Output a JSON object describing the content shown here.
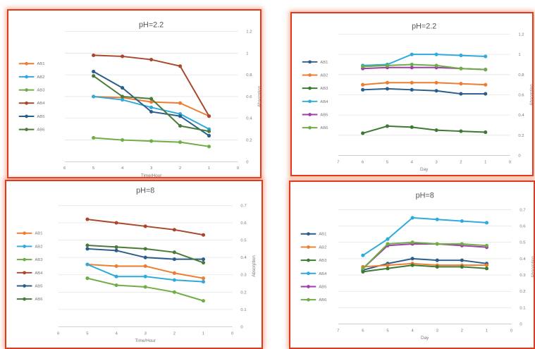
{
  "chart_data": [
    {
      "type": "line",
      "title": "pH=2.2",
      "xlabel": "Time/Hour",
      "ylabel": "Absorption",
      "x_ticks": [
        "6",
        "5",
        "4",
        "3",
        "2",
        "1",
        "0"
      ],
      "x_reversed": true,
      "x": [
        5,
        4,
        3,
        2,
        1
      ],
      "xlim": [
        0,
        6
      ],
      "ylim": [
        0,
        1.2
      ],
      "y_ticks": [
        "0",
        "0.2",
        "0.4",
        "0.6",
        "0.8",
        "1",
        "1.2"
      ],
      "legend_position": "left",
      "series": [
        {
          "name": "AB1",
          "color": "#ed7d31",
          "values": [
            0.6,
            0.59,
            0.55,
            0.54,
            0.42
          ]
        },
        {
          "name": "AB2",
          "color": "#2eaadc",
          "values": [
            0.6,
            0.57,
            0.5,
            0.44,
            0.3
          ]
        },
        {
          "name": "AB3",
          "color": "#70ad47",
          "values": [
            0.22,
            0.2,
            0.19,
            0.18,
            0.14
          ]
        },
        {
          "name": "AB4",
          "color": "#a9472c",
          "values": [
            0.98,
            0.97,
            0.94,
            0.88,
            0.42
          ]
        },
        {
          "name": "AB5",
          "color": "#2b5d8a",
          "values": [
            0.83,
            0.68,
            0.46,
            0.42,
            0.24
          ]
        },
        {
          "name": "AB6",
          "color": "#4a7b3a",
          "values": [
            0.79,
            0.6,
            0.58,
            0.33,
            0.28
          ]
        }
      ]
    },
    {
      "type": "line",
      "title": "pH=2.2",
      "xlabel": "Day",
      "ylabel": "Absorption",
      "x_ticks": [
        "7",
        "6",
        "5",
        "4",
        "3",
        "2",
        "1",
        "0"
      ],
      "x_reversed": true,
      "x": [
        6,
        5,
        4,
        3,
        2,
        1
      ],
      "xlim": [
        0,
        7
      ],
      "ylim": [
        0,
        1.2
      ],
      "y_ticks": [
        "0",
        "0.2",
        "0.4",
        "0.6",
        "0.8",
        "1",
        "1.2"
      ],
      "legend_position": "left",
      "series": [
        {
          "name": "AB1",
          "color": "#2b5d8a",
          "values": [
            0.65,
            0.66,
            0.65,
            0.64,
            0.61,
            0.61
          ]
        },
        {
          "name": "AB2",
          "color": "#ed7d31",
          "values": [
            0.7,
            0.72,
            0.72,
            0.72,
            0.71,
            0.7
          ]
        },
        {
          "name": "AB3",
          "color": "#3c7a32",
          "values": [
            0.22,
            0.29,
            0.28,
            0.25,
            0.24,
            0.23
          ]
        },
        {
          "name": "AB4",
          "color": "#2eaadc",
          "values": [
            0.89,
            0.9,
            1.0,
            1.0,
            0.99,
            0.98
          ]
        },
        {
          "name": "AB5",
          "color": "#9e3fa8",
          "values": [
            0.86,
            0.87,
            0.87,
            0.87,
            0.86,
            0.85
          ]
        },
        {
          "name": "AB6",
          "color": "#70ad47",
          "values": [
            0.88,
            0.89,
            0.9,
            0.89,
            0.86,
            0.85
          ]
        }
      ]
    },
    {
      "type": "line",
      "title": "pH=8",
      "xlabel": "Time/Hour",
      "ylabel": "Absorption",
      "x_ticks": [
        "6",
        "5",
        "4",
        "3",
        "2",
        "1",
        "0"
      ],
      "x_reversed": true,
      "x": [
        5,
        4,
        3,
        2,
        1
      ],
      "xlim": [
        0,
        6
      ],
      "ylim": [
        0,
        0.7
      ],
      "y_ticks": [
        "0",
        "0.1",
        "0.2",
        "0.3",
        "0.4",
        "0.5",
        "0.6",
        "0.7"
      ],
      "legend_position": "left",
      "series": [
        {
          "name": "AB1",
          "color": "#ed7d31",
          "values": [
            0.36,
            0.35,
            0.35,
            0.31,
            0.28
          ]
        },
        {
          "name": "AB2",
          "color": "#2eaadc",
          "values": [
            0.36,
            0.29,
            0.29,
            0.27,
            0.26
          ]
        },
        {
          "name": "AB3",
          "color": "#70ad47",
          "values": [
            0.28,
            0.24,
            0.23,
            0.2,
            0.15
          ]
        },
        {
          "name": "AB4",
          "color": "#a9472c",
          "values": [
            0.62,
            0.6,
            0.58,
            0.56,
            0.53
          ]
        },
        {
          "name": "AB5",
          "color": "#2b5d8a",
          "values": [
            0.45,
            0.44,
            0.4,
            0.39,
            0.39
          ]
        },
        {
          "name": "AB6",
          "color": "#4a7b3a",
          "values": [
            0.47,
            0.46,
            0.45,
            0.43,
            0.37
          ]
        }
      ]
    },
    {
      "type": "line",
      "title": "pH=8",
      "xlabel": "Day",
      "ylabel": "Absorption",
      "x_ticks": [
        "7",
        "6",
        "5",
        "4",
        "3",
        "2",
        "1",
        "0"
      ],
      "x_reversed": true,
      "x": [
        6,
        5,
        4,
        3,
        2,
        1
      ],
      "xlim": [
        0,
        7
      ],
      "ylim": [
        0,
        0.7
      ],
      "y_ticks": [
        "0",
        "0.1",
        "0.2",
        "0.3",
        "0.4",
        "0.5",
        "0.6",
        "0.7"
      ],
      "legend_position": "left",
      "series": [
        {
          "name": "AB1",
          "color": "#2b5d8a",
          "values": [
            0.33,
            0.37,
            0.4,
            0.39,
            0.39,
            0.37
          ]
        },
        {
          "name": "AB2",
          "color": "#ed7d31",
          "values": [
            0.35,
            0.36,
            0.37,
            0.36,
            0.36,
            0.36
          ]
        },
        {
          "name": "AB3",
          "color": "#3c7a32",
          "values": [
            0.32,
            0.34,
            0.36,
            0.35,
            0.35,
            0.34
          ]
        },
        {
          "name": "AB4",
          "color": "#2eaadc",
          "values": [
            0.42,
            0.52,
            0.65,
            0.64,
            0.63,
            0.62
          ]
        },
        {
          "name": "AB5",
          "color": "#9e3fa8",
          "values": [
            0.34,
            0.48,
            0.49,
            0.49,
            0.48,
            0.47
          ]
        },
        {
          "name": "AB6",
          "color": "#70ad47",
          "values": [
            0.34,
            0.49,
            0.5,
            0.49,
            0.49,
            0.48
          ]
        }
      ]
    }
  ]
}
